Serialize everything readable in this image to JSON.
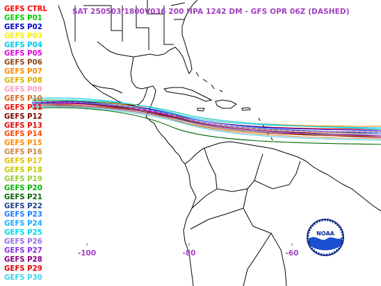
{
  "map": {
    "title": "SAT 250503/1800V036  200 HPA 1242 DM - GFS OPR 06Z (DASHED)",
    "longitude_labels": [
      "-100",
      "-80",
      "-60"
    ],
    "colors": {
      "title": "#a040c0",
      "coastline": "#000000",
      "background": "#ffffff",
      "operational_dashed": "#a040c0"
    },
    "logo": {
      "icon": "noaa-logo-icon",
      "text": "NOAA"
    }
  },
  "legend": [
    {
      "label": "GEFS CTRL",
      "color": "#ff0000"
    },
    {
      "label": "GEFS P01",
      "color": "#00cc00"
    },
    {
      "label": "GEFS P02",
      "color": "#0000cc"
    },
    {
      "label": "GEFS P03",
      "color": "#f2f200"
    },
    {
      "label": "GEFS P04",
      "color": "#00c8e8"
    },
    {
      "label": "GEFS P05",
      "color": "#e000e0"
    },
    {
      "label": "GEFS P06",
      "color": "#8b4513"
    },
    {
      "label": "GEFS P07",
      "color": "#ff8800"
    },
    {
      "label": "GEFS P08",
      "color": "#d8b000"
    },
    {
      "label": "GEFS P09",
      "color": "#ff9ec0"
    },
    {
      "label": "GEFS P10",
      "color": "#d2691e"
    },
    {
      "label": "GEFS P11",
      "color": "#ff0000"
    },
    {
      "label": "GEFS P12",
      "color": "#800000"
    },
    {
      "label": "GEFS P13",
      "color": "#e60000"
    },
    {
      "label": "GEFS P14",
      "color": "#ff4500"
    },
    {
      "label": "GEFS P15",
      "color": "#ff8c00"
    },
    {
      "label": "GEFS P16",
      "color": "#cd853f"
    },
    {
      "label": "GEFS P17",
      "color": "#e0c000"
    },
    {
      "label": "GEFS P18",
      "color": "#c8c800"
    },
    {
      "label": "GEFS P19",
      "color": "#9acd32"
    },
    {
      "label": "GEFS P20",
      "color": "#00b000"
    },
    {
      "label": "GEFS P21",
      "color": "#006400"
    },
    {
      "label": "GEFS P22",
      "color": "#1e3c8c"
    },
    {
      "label": "GEFS P23",
      "color": "#1e78ff"
    },
    {
      "label": "GEFS P24",
      "color": "#1eaaff"
    },
    {
      "label": "GEFS P25",
      "color": "#00d8e8"
    },
    {
      "label": "GEFS P26",
      "color": "#9370db"
    },
    {
      "label": "GEFS P27",
      "color": "#8a2be2"
    },
    {
      "label": "GEFS P28",
      "color": "#800080"
    },
    {
      "label": "GEFS P29",
      "color": "#e00000"
    },
    {
      "label": "GEFS P30",
      "color": "#40d0f0"
    }
  ]
}
